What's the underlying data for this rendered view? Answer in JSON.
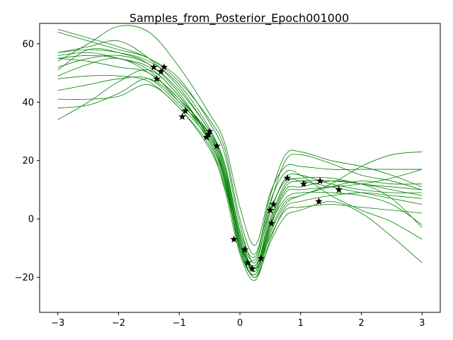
{
  "chart_data": {
    "type": "line",
    "title": "Samples_from_Posterior_Epoch001000",
    "xlabel": "",
    "ylabel": "",
    "xlim": [
      -3.3,
      3.3
    ],
    "ylim": [
      -32,
      67
    ],
    "x_ticks": [
      -3,
      -2,
      -1,
      0,
      1,
      2,
      3
    ],
    "y_ticks": [
      -20,
      0,
      20,
      40,
      60
    ],
    "grid": false,
    "line_color": "#008000",
    "marker_color": "#000000",
    "curve_x": [
      -3.0,
      -2.5,
      -2.0,
      -1.5,
      -1.0,
      -0.5,
      -0.25,
      0.0,
      0.25,
      0.5,
      0.75,
      1.0,
      1.5,
      2.0,
      2.5,
      3.0
    ],
    "series": [
      {
        "values": [
          65,
          62,
          59,
          55,
          48,
          33,
          22,
          -2,
          -15,
          5,
          20,
          22,
          19,
          15,
          13,
          10
        ]
      },
      {
        "values": [
          64,
          61,
          58,
          55,
          47,
          34,
          24,
          0,
          -12,
          8,
          22,
          23,
          20,
          18,
          15,
          11
        ]
      },
      {
        "values": [
          57,
          58,
          57,
          54,
          46,
          31,
          18,
          -5,
          -17,
          2,
          14,
          15,
          12,
          10,
          9,
          9
        ]
      },
      {
        "values": [
          56,
          57,
          55,
          52,
          42,
          28,
          15,
          -8,
          -18,
          -1,
          11,
          13,
          13,
          12,
          10,
          8
        ]
      },
      {
        "values": [
          55,
          56,
          55,
          51,
          40,
          29,
          16,
          -7,
          -16,
          0,
          12,
          14,
          14,
          12,
          11,
          10
        ]
      },
      {
        "values": [
          52,
          55,
          56,
          53,
          44,
          30,
          17,
          -6,
          -14,
          3,
          13,
          13,
          11,
          9,
          7,
          5
        ]
      },
      {
        "values": [
          51,
          58,
          57,
          53,
          43,
          27,
          14,
          -10,
          -19,
          -3,
          9,
          10,
          11,
          12,
          14,
          17
        ]
      },
      {
        "values": [
          54,
          60,
          66,
          64,
          52,
          36,
          26,
          4,
          -9,
          9,
          18,
          18,
          17,
          17,
          17,
          17
        ]
      },
      {
        "values": [
          49,
          53,
          55,
          50,
          41,
          26,
          12,
          -9,
          -20,
          -5,
          5,
          8,
          11,
          13,
          12,
          12
        ]
      },
      {
        "values": [
          48,
          49,
          49,
          47,
          38,
          25,
          10,
          -12,
          -21,
          -7,
          4,
          6,
          8,
          9,
          8,
          7
        ]
      },
      {
        "values": [
          44,
          46,
          48,
          48,
          39,
          27,
          13,
          -11,
          -19,
          -4,
          6,
          8,
          12,
          18,
          22,
          23
        ]
      },
      {
        "values": [
          41,
          41,
          42,
          46,
          38,
          24,
          11,
          -9,
          -17,
          -6,
          3,
          4,
          5,
          4,
          3,
          2
        ]
      },
      {
        "values": [
          38,
          39,
          43,
          48,
          40,
          28,
          15,
          -8,
          -16,
          -2,
          7,
          9,
          9,
          8,
          5,
          -2
        ]
      },
      {
        "values": [
          34,
          40,
          47,
          51,
          42,
          27,
          13,
          -10,
          -20,
          -8,
          1,
          3,
          6,
          2,
          -6,
          -15
        ]
      },
      {
        "values": [
          57,
          59,
          61,
          55,
          45,
          30,
          19,
          -4,
          -13,
          6,
          16,
          15,
          8,
          3,
          -1,
          -7
        ]
      },
      {
        "values": [
          55,
          54,
          52,
          50,
          41,
          29,
          14,
          -7,
          -18,
          -2,
          10,
          11,
          13,
          12,
          7,
          -3
        ]
      }
    ],
    "observations": {
      "x": [
        -1.42,
        -1.37,
        -1.3,
        -1.25,
        -0.95,
        -0.9,
        -0.55,
        -0.52,
        -0.5,
        -0.38,
        -0.1,
        0.08,
        0.13,
        0.2,
        0.35,
        0.5,
        0.52,
        0.55,
        0.78,
        1.05,
        1.3,
        1.32,
        1.63
      ],
      "y": [
        52,
        48,
        50.5,
        52,
        35,
        37,
        28,
        29,
        30,
        25,
        -7,
        -10.5,
        -15,
        -17,
        -13.5,
        3,
        -1.5,
        5,
        14,
        12,
        6,
        13,
        10
      ]
    }
  }
}
